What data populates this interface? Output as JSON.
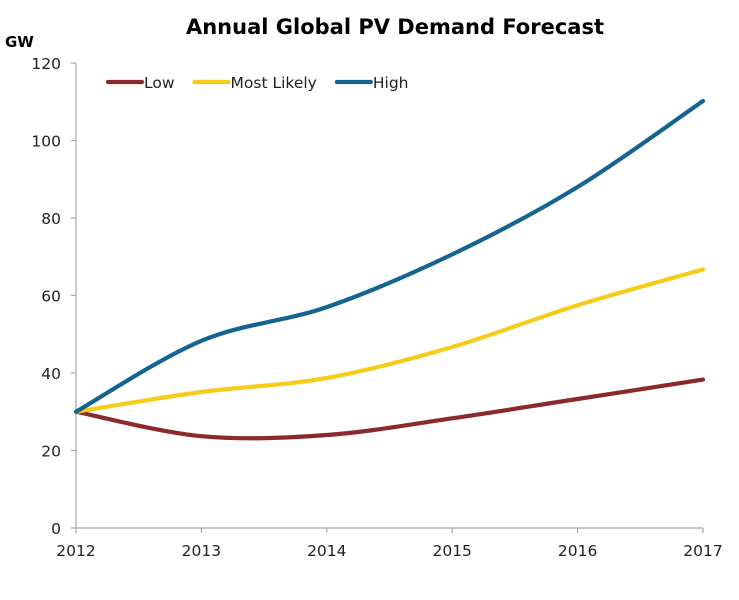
{
  "chart_data": {
    "type": "line",
    "title": "Annual Global PV Demand Forecast",
    "xlabel": "",
    "ylabel": "GW",
    "x": [
      2012,
      2013,
      2014,
      2015,
      2016,
      2017
    ],
    "x_tick_labels": [
      "2012",
      "2013",
      "2014",
      "2015",
      "2016",
      "2017"
    ],
    "ylim": [
      0,
      120
    ],
    "y_ticks": [
      0,
      20,
      40,
      60,
      80,
      100,
      120
    ],
    "y_tick_labels": [
      "0",
      "20",
      "40",
      "60",
      "80",
      "100",
      "120"
    ],
    "grid": false,
    "smooth": true,
    "legend_position": "top-left",
    "series": [
      {
        "name": "Low",
        "color": "#8b2a2a",
        "values": [
          30,
          23.7,
          24,
          28.3,
          33.3,
          38.3
        ]
      },
      {
        "name": "Most Likely",
        "color": "#f5cc1a",
        "values": [
          30,
          35.1,
          38.7,
          46.7,
          57.5,
          66.7
        ]
      },
      {
        "name": "High",
        "color": "#14648f",
        "values": [
          30,
          48.3,
          57,
          70.6,
          88,
          110.2
        ]
      }
    ]
  }
}
